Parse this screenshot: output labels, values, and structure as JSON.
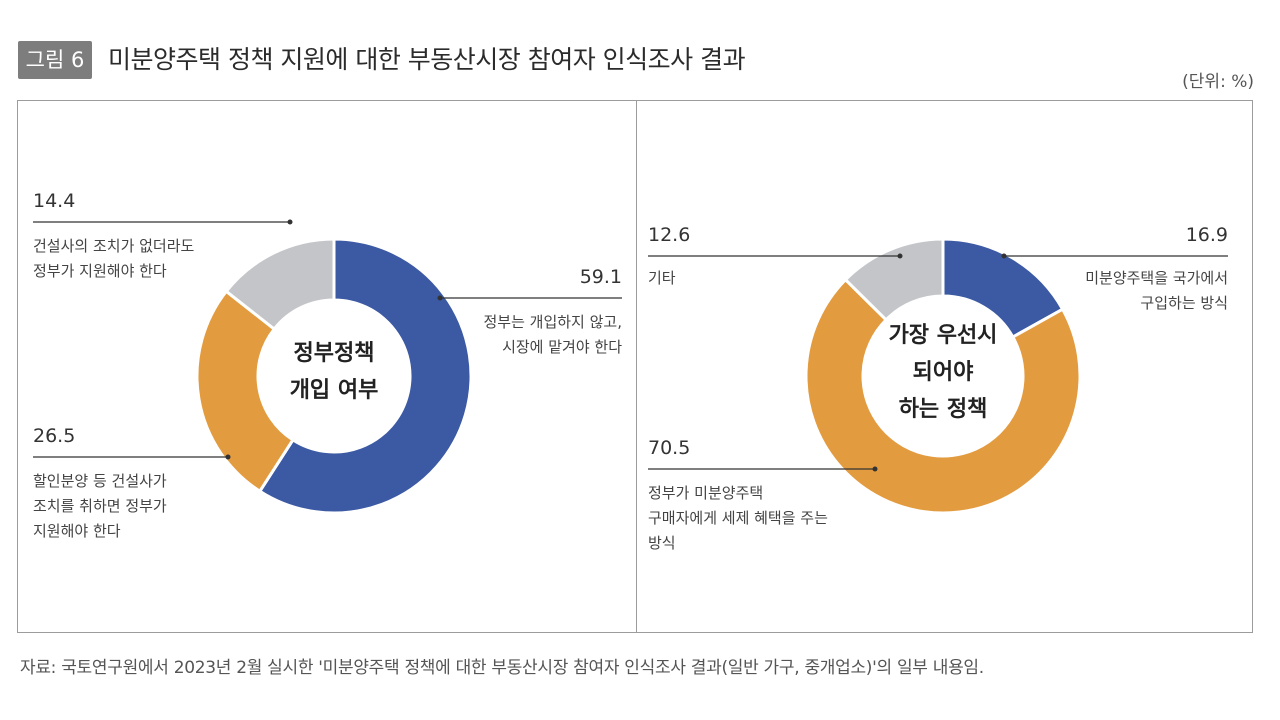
{
  "figure": {
    "label": "그림 6",
    "title": "미분양주택 정책 지원에 대한 부동산시장 참여자 인식조사 결과",
    "unit": "(단위: %)",
    "source": "자료: 국토연구원에서 2023년 2월 실시한 '미분양주택 정책에 대한 부동산시장 참여자 인식조사 결과(일반 가구, 중개업소)'의 일부 내용임."
  },
  "colors": {
    "blue": "#3b5aa3",
    "orange": "#e39b3f",
    "gray": "#c3c5c9",
    "line": "#333333"
  },
  "chart_data": [
    {
      "type": "pie",
      "donut": true,
      "center_label": [
        "정부정책",
        "개입 여부"
      ],
      "slices": [
        {
          "label": [
            "정부는 개입하지 않고,",
            "시장에 맡겨야 한다"
          ],
          "value": 59.1,
          "color": "#3b5aa3"
        },
        {
          "label": [
            "할인분양 등 건설사가",
            "조치를 취하면 정부가",
            "지원해야 한다"
          ],
          "value": 26.5,
          "color": "#e39b3f"
        },
        {
          "label": [
            "건설사의 조치가 없더라도",
            "정부가 지원해야 한다"
          ],
          "value": 14.4,
          "color": "#c3c5c9"
        }
      ]
    },
    {
      "type": "pie",
      "donut": true,
      "center_label": [
        "가장 우선시",
        "되어야",
        "하는 정책"
      ],
      "slices": [
        {
          "label": [
            "미분양주택을 국가에서",
            "구입하는 방식"
          ],
          "value": 16.9,
          "color": "#3b5aa3"
        },
        {
          "label": [
            "정부가 미분양주택",
            "구매자에게 세제 혜택을 주는",
            "방식"
          ],
          "value": 70.5,
          "color": "#e39b3f"
        },
        {
          "label": [
            "기타"
          ],
          "value": 12.6,
          "color": "#c3c5c9"
        }
      ]
    }
  ]
}
